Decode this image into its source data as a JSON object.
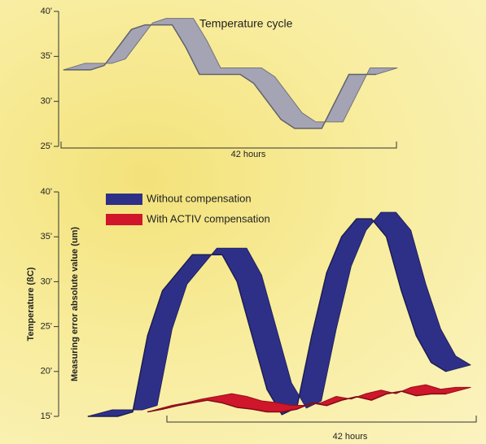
{
  "chart_data": [
    {
      "type": "line",
      "title": "Temperature cycle",
      "x_label": "42 hours",
      "ylim": [
        25,
        40
      ],
      "yticks": [
        {
          "value": 25,
          "label": "25'"
        },
        {
          "value": 30,
          "label": "30'"
        },
        {
          "value": 35,
          "label": "35'"
        },
        {
          "value": 40,
          "label": "40'"
        }
      ],
      "series": [
        {
          "color": "#a4a4b4",
          "values": [
            33.5,
            33.5,
            33.5,
            34,
            36,
            38,
            38.5,
            38.5,
            38.5,
            36,
            33,
            33,
            33,
            33,
            32,
            30,
            28,
            27,
            27,
            27,
            30,
            33,
            33,
            33
          ]
        }
      ]
    },
    {
      "type": "line",
      "x_label": "42 hours",
      "y_labels": [
        "Temperature (ßC)",
        "Measuring error absolute value (um)"
      ],
      "ylim": [
        15,
        40
      ],
      "yticks": [
        {
          "value": 15,
          "label": "15'"
        },
        {
          "value": 20,
          "label": "20'"
        },
        {
          "value": 25,
          "label": "25'"
        },
        {
          "value": 30,
          "label": "30'"
        },
        {
          "value": 35,
          "label": "35'"
        },
        {
          "value": 40,
          "label": "40'"
        }
      ],
      "series": [
        {
          "name": "Without compensation",
          "color": "#2e3088",
          "values": [
            15,
            15,
            15,
            15.5,
            24,
            29,
            31,
            33,
            33,
            33,
            30,
            24,
            18,
            15.2,
            16,
            24,
            31,
            35,
            37,
            37,
            35,
            29,
            24,
            21,
            20
          ]
        },
        {
          "name": "With ACTIV compensation",
          "color": "#d0162a",
          "values": [
            null,
            null,
            null,
            null,
            15.5,
            15.8,
            16.2,
            16.5,
            16.8,
            16.5,
            16,
            15.8,
            15.5,
            15.5,
            15.8,
            16.5,
            16.2,
            16.8,
            17.2,
            16.8,
            17.5,
            17.8,
            17.3,
            17.5,
            17.5
          ]
        }
      ]
    }
  ]
}
